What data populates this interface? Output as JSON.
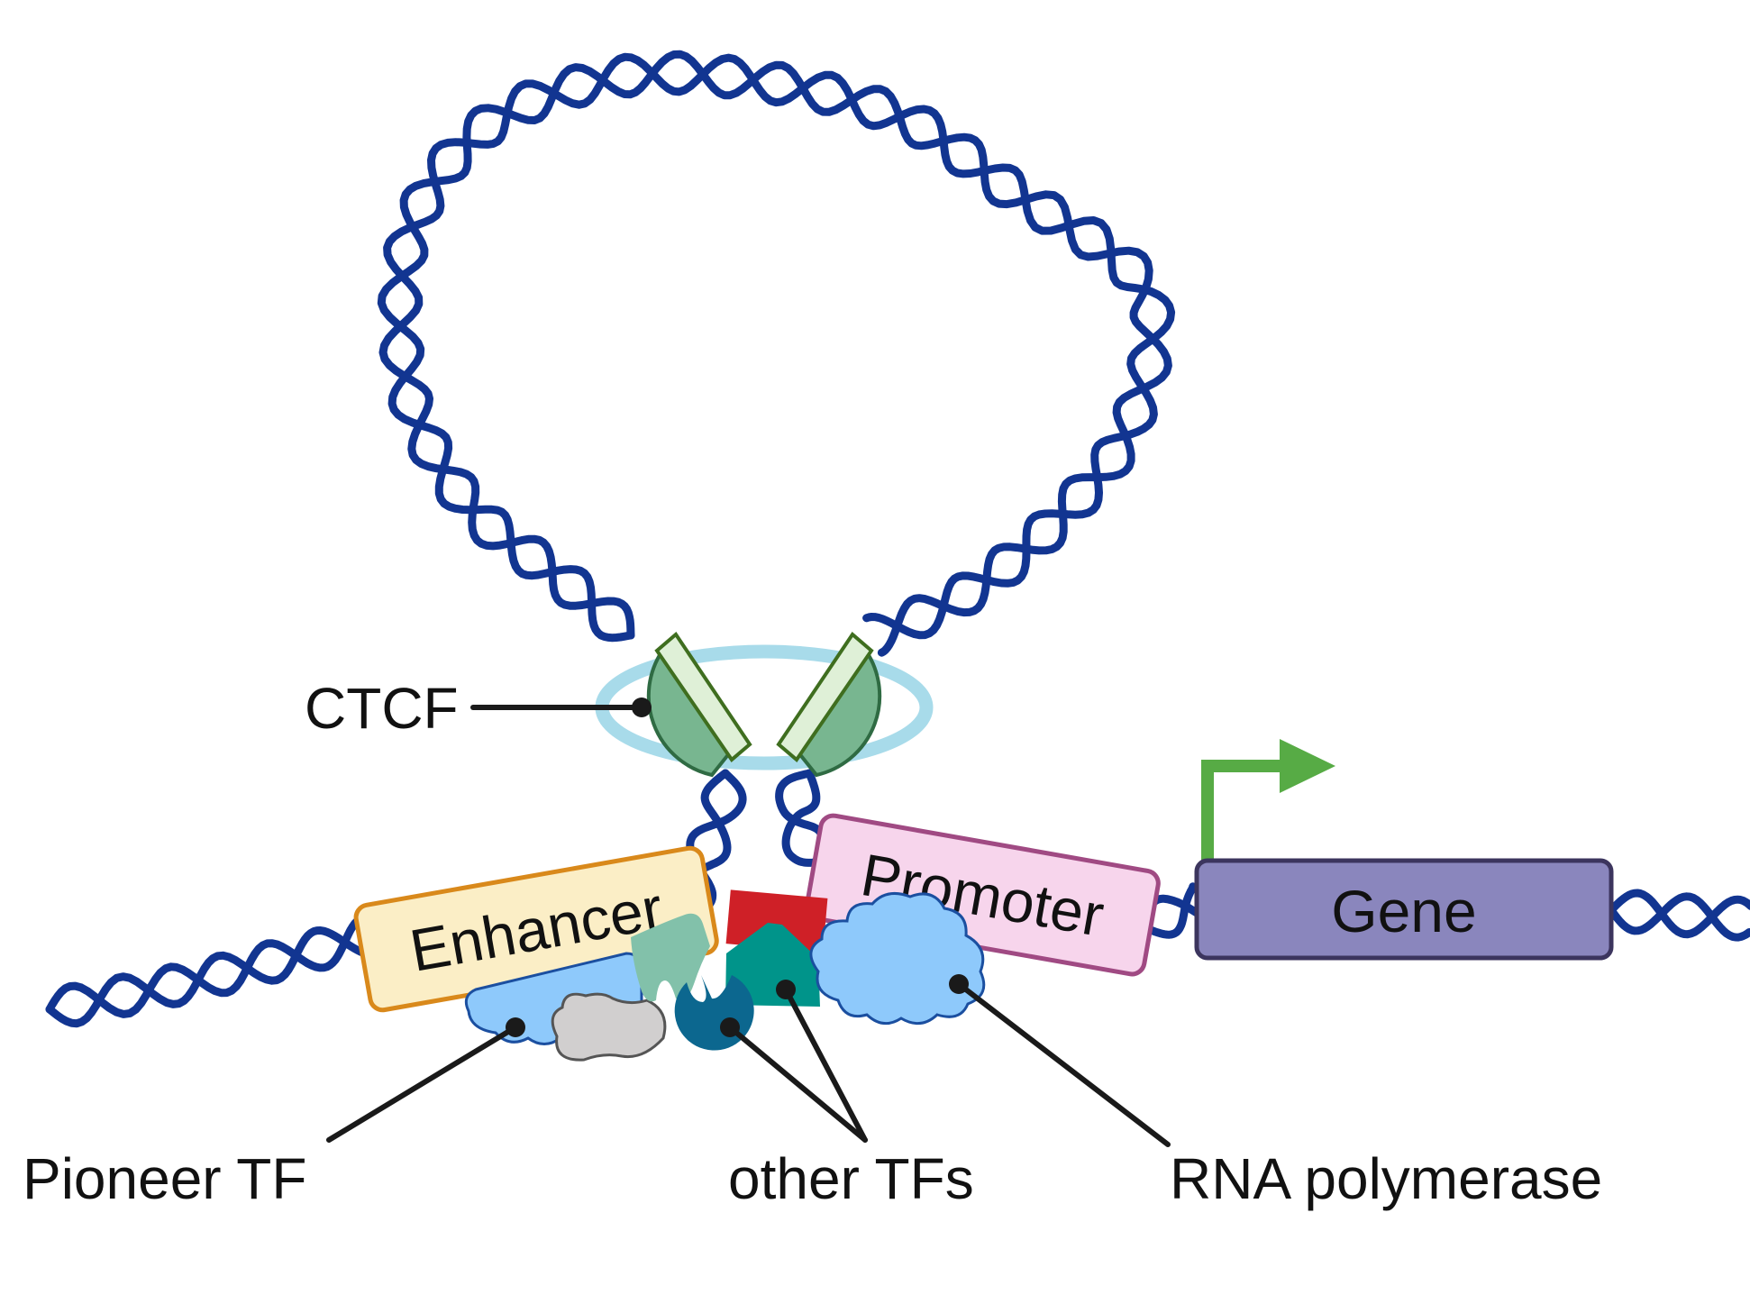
{
  "labels": {
    "ctcf": "CTCF",
    "enhancer": "Enhancer",
    "promoter": "Promoter",
    "gene": "Gene",
    "pioneer_tf": "Pioneer TF",
    "other_tfs": "other TFs",
    "rna_polymerase": "RNA polymerase"
  },
  "colors": {
    "dna": "#123591",
    "ctcf_ring": "#a8dbea",
    "ctcf_body": "#78b690",
    "ctcf_face": "#dff0d7",
    "enhancer_fill": "#fbeec6",
    "enhancer_stroke": "#d9891b",
    "promoter_fill": "#f7d5ec",
    "promoter_stroke": "#a04a83",
    "gene_fill": "#8a86bd",
    "gene_stroke": "#3c355e",
    "tss_arrow": "#57ab45",
    "pioneer_tf": "#8ec9fb",
    "rna_pol": "#8ec9fb",
    "tf_red": "#cf2027",
    "tf_teal": "#00948a",
    "tf_mint": "#82c1aa",
    "tf_grey": "#d1cfcf",
    "tf_blue": "#0c678f",
    "leader": "#1a1a1a"
  }
}
